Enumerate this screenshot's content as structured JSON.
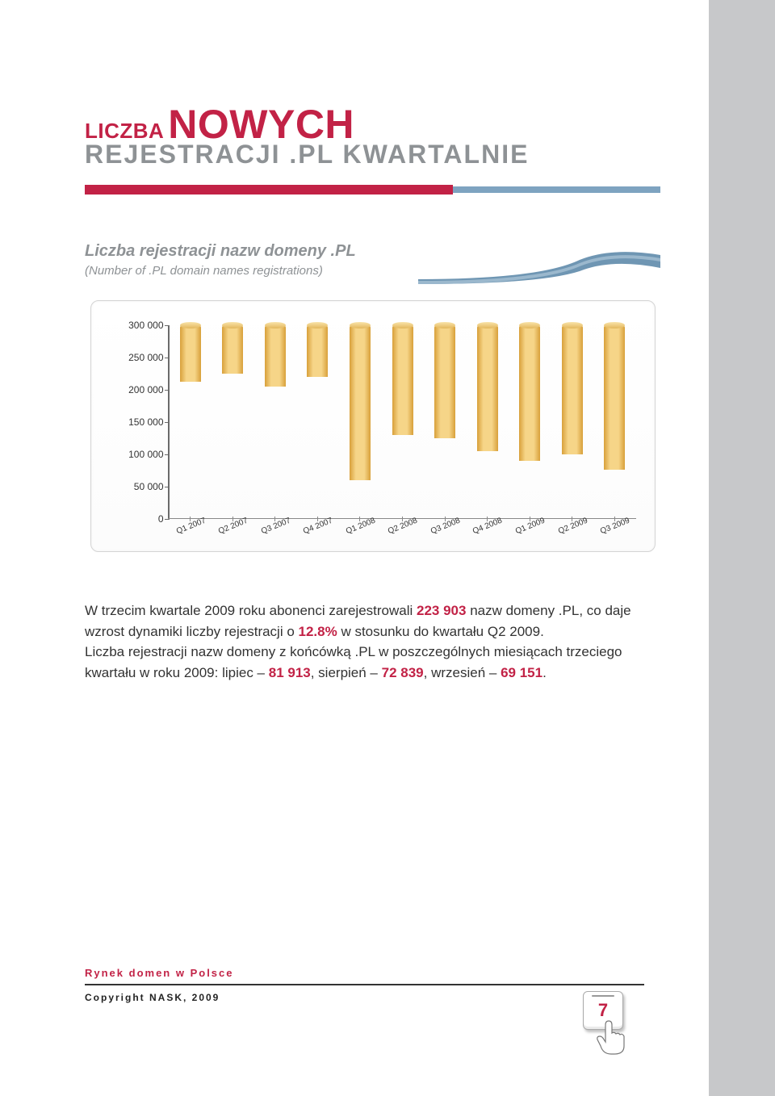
{
  "title": {
    "line1_small": "LICZBA",
    "line1_big": "NOWYCH",
    "line2": "REJESTRACJI .PL KWARTALNIE"
  },
  "subtitle_pl": "Liczba rejestracji nazw domeny .PL",
  "subtitle_en": "(Number of .PL domain names registrations)",
  "chart": {
    "type": "bar",
    "ylim": [
      0,
      300000
    ],
    "ytick_step": 50000,
    "yticks": [
      "0",
      "50 000",
      "100 000",
      "150 000",
      "200 000",
      "250 000",
      "300 000"
    ],
    "categories": [
      "Q1 2007",
      "Q2 2007",
      "Q3 2007",
      "Q4 2007",
      "Q1 2008",
      "Q2 2008",
      "Q3 2008",
      "Q4 2008",
      "Q1 2009",
      "Q2 2009",
      "Q3 2009"
    ],
    "values": [
      88000,
      75000,
      95000,
      80000,
      240000,
      170000,
      175000,
      195000,
      210000,
      200000,
      224000
    ],
    "bar_gradient": [
      "#d8a03a",
      "#f6d588"
    ],
    "axis_color": "#6b6b6b",
    "label_fontsize": 12,
    "xlabel_fontsize": 10,
    "xlabel_rotation": -22
  },
  "body": {
    "t1a": "W trzecim kwartale 2009 roku abonenci zarejestrowali ",
    "v1": "223 903",
    "t1b": " nazw domeny .PL, co daje wzrost dynamiki liczby rejestracji o ",
    "v2": "12.8%",
    "t1c": " w stosunku do kwartału Q2 2009.",
    "t2a": "Liczba rejestracji nazw domeny z końcówką .PL w poszczególnych miesiącach trzeciego kwartału w roku 2009: lipiec – ",
    "v3": "81 913",
    "t2b": ", sierpień – ",
    "v4": "72 839",
    "t2c": ", wrzesień – ",
    "v5": "69 151",
    "t2d": "."
  },
  "footer": {
    "title": "Rynek domen w Polsce",
    "copy": "Copyright NASK, 2009"
  },
  "page_number": "7",
  "colors": {
    "accent_red": "#c22246",
    "accent_blue": "#7ea3c0",
    "gray": "#8e9295"
  }
}
